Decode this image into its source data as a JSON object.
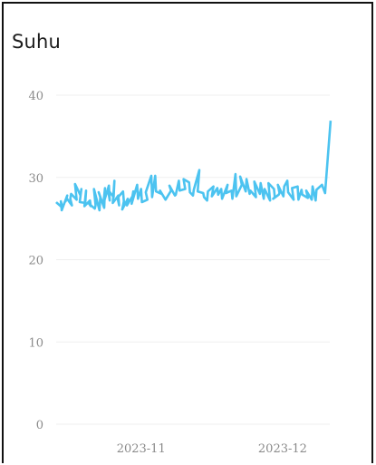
{
  "card": {
    "title": "Suhu"
  },
  "chart_data": {
    "type": "line",
    "title": "Suhu",
    "xlabel": "",
    "ylabel": "",
    "ylim": [
      0,
      40
    ],
    "yticks": [
      0,
      10,
      20,
      30,
      40
    ],
    "xticks": [
      {
        "label": "2023-11",
        "date": "2023-11-01"
      },
      {
        "label": "2023-12",
        "date": "2023-12-01"
      }
    ],
    "xlim": [
      "2023-10-14",
      "2023-12-11"
    ],
    "grid": true,
    "line_color": "#4cc3f0",
    "series": [
      {
        "dates": [
          "2023-10-14",
          "2023-10-14",
          "2023-10-15",
          "2023-10-15",
          "2023-10-15",
          "2023-10-16",
          "2023-10-16",
          "2023-10-16",
          "2023-10-17",
          "2023-10-17",
          "2023-10-17",
          "2023-10-18",
          "2023-10-18",
          "2023-10-19",
          "2023-10-19",
          "2023-10-19",
          "2023-10-20",
          "2023-10-20",
          "2023-10-20",
          "2023-10-21",
          "2023-10-21",
          "2023-10-21",
          "2023-10-22",
          "2023-10-22",
          "2023-10-22",
          "2023-10-23",
          "2023-10-23",
          "2023-10-23",
          "2023-10-24",
          "2023-10-24",
          "2023-10-24",
          "2023-10-25",
          "2023-10-25",
          "2023-10-25",
          "2023-10-26",
          "2023-10-26",
          "2023-10-26",
          "2023-10-27",
          "2023-10-27",
          "2023-10-27",
          "2023-10-28",
          "2023-10-28",
          "2023-10-28",
          "2023-10-29",
          "2023-10-29",
          "2023-10-29",
          "2023-10-30",
          "2023-10-30",
          "2023-10-30",
          "2023-10-31",
          "2023-10-31",
          "2023-11-01",
          "2023-11-01",
          "2023-11-02",
          "2023-11-02",
          "2023-11-03",
          "2023-11-03",
          "2023-11-04",
          "2023-11-04",
          "2023-11-05",
          "2023-11-05",
          "2023-11-06",
          "2023-11-07",
          "2023-11-07",
          "2023-11-08",
          "2023-11-08",
          "2023-11-09",
          "2023-11-09",
          "2023-11-10",
          "2023-11-10",
          "2023-11-11",
          "2023-11-11",
          "2023-11-12",
          "2023-11-12",
          "2023-11-13",
          "2023-11-13",
          "2023-11-14",
          "2023-11-14",
          "2023-11-15",
          "2023-11-15",
          "2023-11-16",
          "2023-11-16",
          "2023-11-17",
          "2023-11-17",
          "2023-11-18",
          "2023-11-18",
          "2023-11-19",
          "2023-11-19",
          "2023-11-20",
          "2023-11-20",
          "2023-11-21",
          "2023-11-21",
          "2023-11-22",
          "2023-11-22",
          "2023-11-23",
          "2023-11-23",
          "2023-11-24",
          "2023-11-24",
          "2023-11-25",
          "2023-11-25",
          "2023-11-26",
          "2023-11-26",
          "2023-11-27",
          "2023-11-27",
          "2023-11-28",
          "2023-11-28",
          "2023-11-29",
          "2023-11-29",
          "2023-11-29",
          "2023-11-30",
          "2023-11-30",
          "2023-11-30",
          "2023-12-01",
          "2023-12-01",
          "2023-12-02",
          "2023-12-02",
          "2023-12-03",
          "2023-12-03",
          "2023-12-04",
          "2023-12-04",
          "2023-12-05",
          "2023-12-05",
          "2023-12-06",
          "2023-12-06",
          "2023-12-07",
          "2023-12-07",
          "2023-12-08",
          "2023-12-08",
          "2023-12-09",
          "2023-12-10",
          "2023-12-11"
        ],
        "values": [
          27.0,
          26.9,
          26.3,
          27.1,
          26.0,
          27.8,
          27.1,
          27.5,
          26.6,
          27.4,
          28.0,
          27.3,
          29.2,
          27.8,
          28.6,
          27.0,
          26.9,
          28.4,
          26.5,
          27.2,
          26.5,
          26.8,
          26.2,
          26.6,
          28.6,
          26.0,
          27.6,
          28.2,
          26.3,
          28.7,
          26.8,
          29.0,
          27.2,
          28.5,
          27.6,
          29.6,
          26.9,
          27.8,
          26.6,
          27.5,
          28.3,
          27.1,
          26.1,
          27.4,
          27.0,
          26.6,
          27.7,
          28.3,
          26.8,
          29.1,
          27.4,
          28.6,
          27.0,
          27.3,
          28.2,
          30.2,
          27.6,
          30.2,
          28.3,
          28.0,
          28.4,
          27.3,
          28.4,
          29.0,
          27.8,
          27.9,
          29.6,
          28.4,
          28.6,
          29.8,
          29.4,
          28.2,
          27.8,
          28.5,
          30.9,
          28.3,
          28.1,
          27.6,
          27.2,
          28.3,
          28.9,
          27.7,
          28.7,
          27.9,
          28.6,
          27.4,
          29.1,
          28.1,
          28.4,
          27.4,
          30.4,
          27.7,
          29.1,
          30.1,
          28.3,
          29.8,
          28.0,
          28.4,
          27.6,
          29.5,
          28.0,
          29.3,
          27.4,
          28.6,
          27.2,
          29.3,
          28.6,
          27.6,
          27.4,
          27.9,
          28.1,
          29.1,
          27.7,
          28.9,
          29.6,
          28.2,
          27.3,
          28.7,
          28.9,
          27.3,
          28.5,
          27.9,
          27.5,
          28.4,
          27.3,
          28.9,
          27.2,
          28.5,
          29.1,
          28.1,
          36.9
        ]
      }
    ]
  }
}
